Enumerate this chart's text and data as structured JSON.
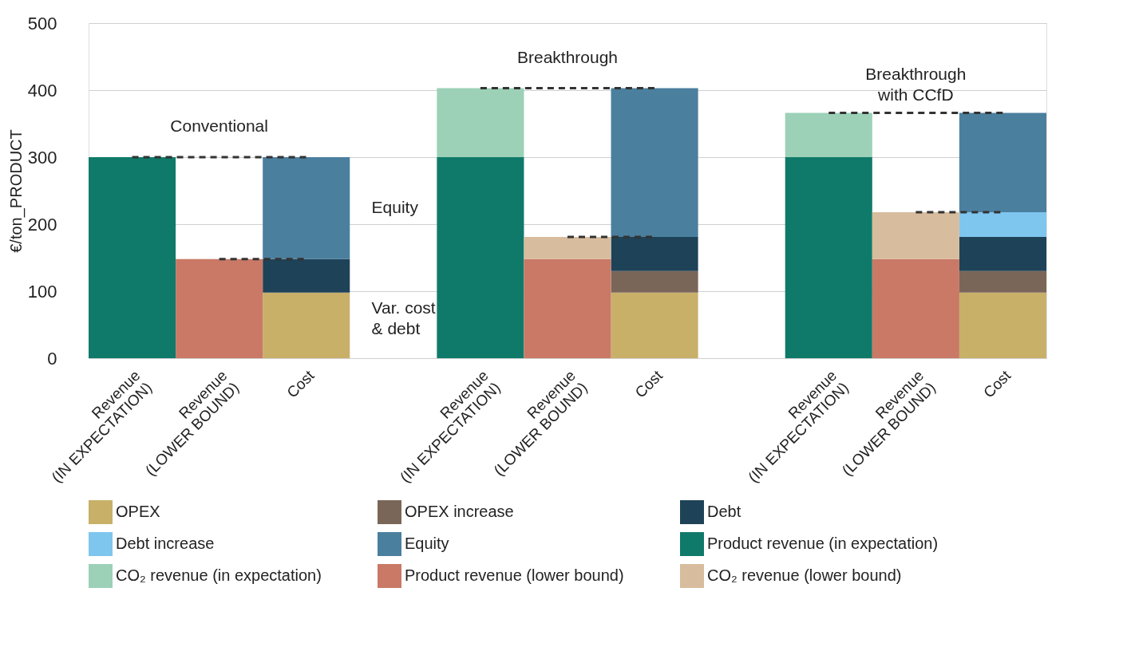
{
  "chart_data": {
    "type": "bar",
    "stacked": true,
    "categories": [
      "Revenue\n(IN EXPECTATION)",
      "Revenue\n(LOWER BOUND)",
      "Cost",
      null,
      "Revenue\n(IN EXPECTATION)",
      "Revenue\n(LOWER BOUND)",
      "Cost",
      null,
      "Revenue\n(IN EXPECTATION)",
      "Revenue\n(LOWER BOUND)",
      "Cost"
    ],
    "series": [
      {
        "name": "OPEX",
        "color": "#c8b069",
        "values": [
          null,
          null,
          98,
          null,
          null,
          null,
          98,
          null,
          null,
          null,
          98
        ]
      },
      {
        "name": "OPEX increase",
        "color": "#7a6658",
        "values": [
          null,
          null,
          null,
          null,
          null,
          null,
          32,
          null,
          null,
          null,
          32
        ]
      },
      {
        "name": "Debt",
        "color": "#1e4257",
        "values": [
          null,
          null,
          50,
          null,
          null,
          null,
          51,
          null,
          null,
          null,
          51
        ]
      },
      {
        "name": "Debt increase",
        "color": "#7ec6ee",
        "values": [
          null,
          null,
          null,
          null,
          null,
          null,
          null,
          null,
          null,
          null,
          37
        ]
      },
      {
        "name": "Equity",
        "color": "#4b7f9e",
        "values": [
          null,
          null,
          152,
          null,
          null,
          null,
          222,
          null,
          null,
          null,
          148
        ]
      },
      {
        "name": "Product revenue (in expectation)",
        "color": "#107a6a",
        "values": [
          300,
          null,
          null,
          null,
          300,
          null,
          null,
          null,
          300,
          null,
          null
        ]
      },
      {
        "name": "CO₂ revenue (in expectation)",
        "color": "#9cd1b7",
        "values": [
          null,
          null,
          null,
          null,
          103,
          null,
          null,
          null,
          66,
          null,
          null
        ]
      },
      {
        "name": "Product revenue (lower bound)",
        "color": "#c97966",
        "values": [
          null,
          148,
          null,
          null,
          null,
          148,
          null,
          null,
          null,
          148,
          null
        ]
      },
      {
        "name": "CO₂ revenue (lower bound)",
        "color": "#d8bc9e",
        "values": [
          null,
          null,
          null,
          null,
          null,
          33,
          null,
          null,
          null,
          70,
          null
        ]
      },
      {
        "type": "line",
        "color": "#333333",
        "line_style": "dashed",
        "values": [
          300,
          300,
          300,
          null,
          403,
          403,
          403,
          null,
          366,
          366,
          366
        ]
      },
      {
        "type": "line",
        "color": "#333333",
        "line_style": "dashed",
        "values": [
          null,
          148,
          148,
          null,
          null,
          181,
          181,
          null,
          null,
          218,
          218
        ]
      }
    ],
    "ylabel": "€/ton_PRODUCT",
    "ylim": [
      0,
      500
    ],
    "yticks": [
      0,
      100,
      200,
      300,
      400,
      500
    ],
    "grid": "y",
    "legend": "bottom",
    "annotations": [
      "Conventional",
      "Breakthrough",
      "Breakthrough\nwith CCfD",
      "Equity",
      "Var. cost\n& debt"
    ]
  }
}
